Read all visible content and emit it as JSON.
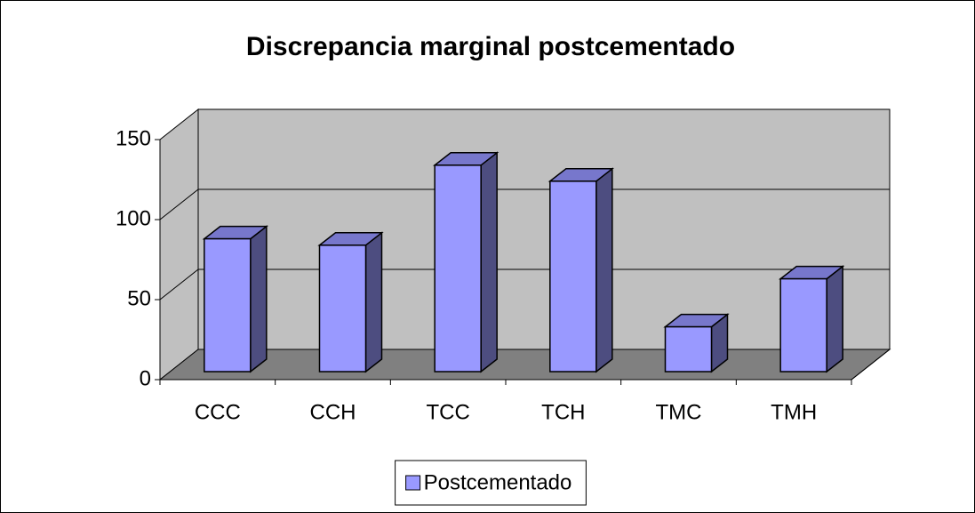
{
  "chart_data": {
    "type": "bar3d",
    "title": "Discrepancia marginal postcementado",
    "categories": [
      "CCC",
      "CCH",
      "TCC",
      "TCH",
      "TMC",
      "TMH"
    ],
    "series": [
      {
        "name": "Postcementado",
        "color": "#9999ff",
        "values": [
          83,
          79,
          129,
          119,
          28,
          58
        ]
      }
    ],
    "ylim": [
      0,
      150
    ],
    "yticks": [
      0,
      50,
      100,
      150
    ],
    "grid": true,
    "legend": "bottom"
  }
}
